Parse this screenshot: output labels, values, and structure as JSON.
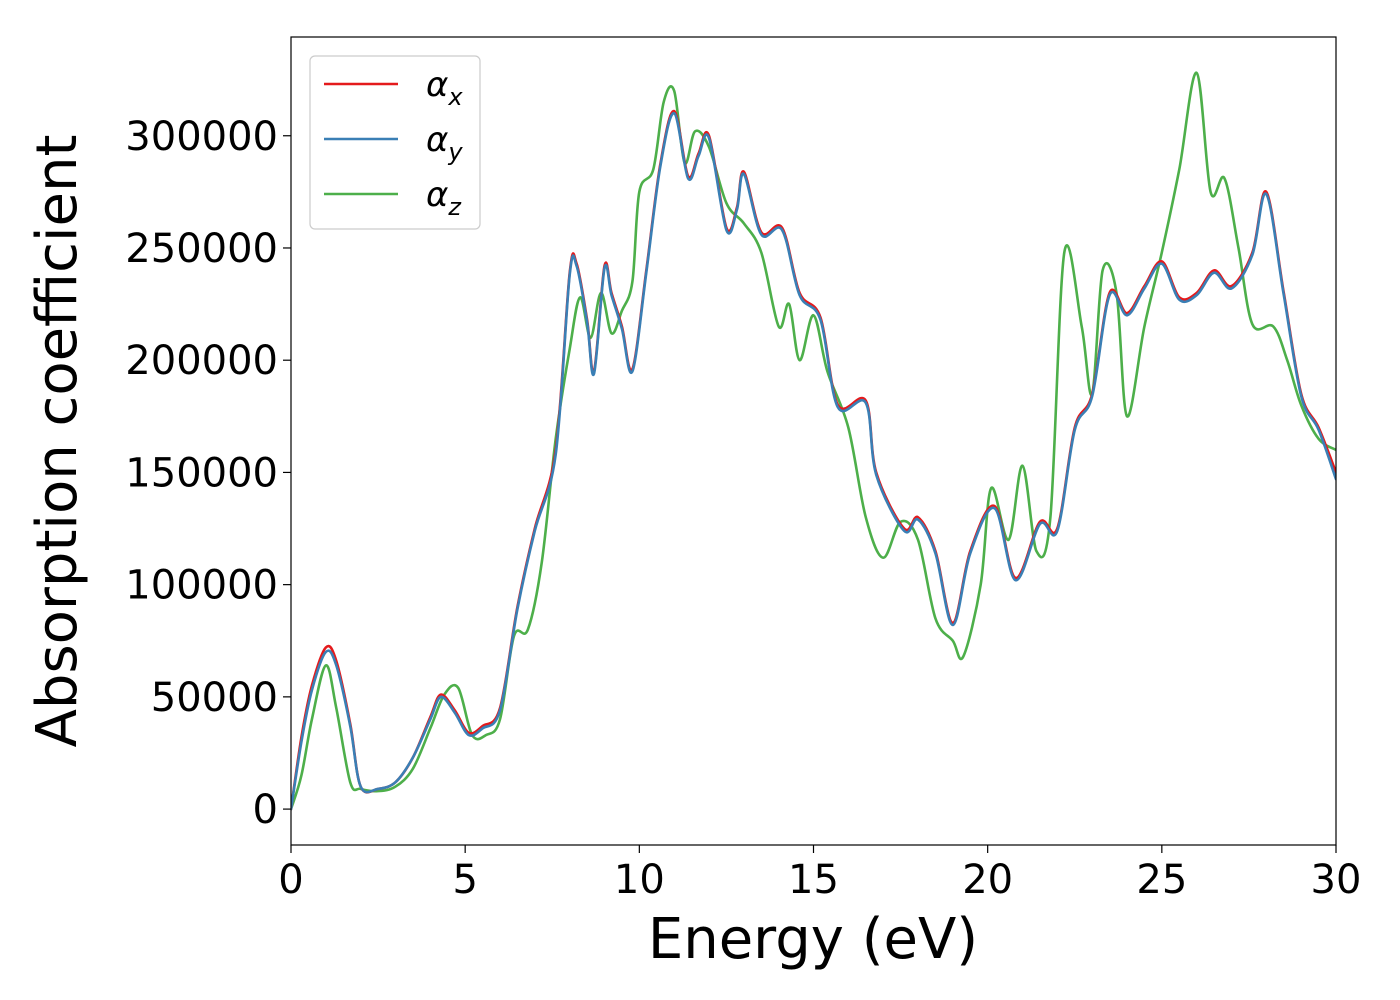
{
  "chart_data": {
    "type": "line",
    "title": "",
    "xlabel": "Energy (eV)",
    "ylabel": "Absorption coefficient",
    "xlim": [
      0,
      30
    ],
    "ylim": [
      -16000,
      344000
    ],
    "x_ticks": [
      0,
      5,
      10,
      15,
      20,
      25,
      30
    ],
    "y_ticks": [
      0,
      50000,
      100000,
      150000,
      200000,
      250000,
      300000
    ],
    "grid": false,
    "legend_position": "upper-left",
    "series": [
      {
        "name": "αx",
        "label_main": "α",
        "label_sub": "x",
        "color": "#e41a1c",
        "points": [
          [
            0,
            0
          ],
          [
            0.3,
            32000
          ],
          [
            0.6,
            55000
          ],
          [
            1.0,
            72000
          ],
          [
            1.3,
            66000
          ],
          [
            1.7,
            38000
          ],
          [
            2.0,
            10000
          ],
          [
            2.5,
            9000
          ],
          [
            3.0,
            12000
          ],
          [
            3.5,
            23000
          ],
          [
            4.0,
            41000
          ],
          [
            4.3,
            51000
          ],
          [
            4.7,
            44000
          ],
          [
            5.1,
            34000
          ],
          [
            5.5,
            37000
          ],
          [
            6.0,
            45000
          ],
          [
            6.5,
            90000
          ],
          [
            7.0,
            125000
          ],
          [
            7.6,
            160000
          ],
          [
            8.0,
            239000
          ],
          [
            8.2,
            243000
          ],
          [
            8.5,
            218000
          ],
          [
            8.7,
            195000
          ],
          [
            9.0,
            242000
          ],
          [
            9.2,
            230000
          ],
          [
            9.5,
            215000
          ],
          [
            9.8,
            196000
          ],
          [
            10.2,
            240000
          ],
          [
            10.6,
            287000
          ],
          [
            11.0,
            311000
          ],
          [
            11.4,
            282000
          ],
          [
            11.7,
            292000
          ],
          [
            12.0,
            300000
          ],
          [
            12.5,
            259000
          ],
          [
            12.8,
            268000
          ],
          [
            13.0,
            284000
          ],
          [
            13.5,
            257000
          ],
          [
            14.1,
            259000
          ],
          [
            14.6,
            230000
          ],
          [
            15.2,
            219000
          ],
          [
            15.7,
            180000
          ],
          [
            16.5,
            182000
          ],
          [
            16.8,
            150000
          ],
          [
            17.6,
            125000
          ],
          [
            18.0,
            130000
          ],
          [
            18.5,
            115000
          ],
          [
            19.0,
            83000
          ],
          [
            19.5,
            115000
          ],
          [
            20.2,
            135000
          ],
          [
            20.8,
            103000
          ],
          [
            21.5,
            128000
          ],
          [
            22.0,
            125000
          ],
          [
            22.5,
            170000
          ],
          [
            23.0,
            185000
          ],
          [
            23.5,
            230000
          ],
          [
            24.0,
            221000
          ],
          [
            24.5,
            233000
          ],
          [
            25.0,
            244000
          ],
          [
            25.5,
            228000
          ],
          [
            26.0,
            230000
          ],
          [
            26.5,
            240000
          ],
          [
            27.0,
            233000
          ],
          [
            27.6,
            248000
          ],
          [
            28.0,
            275000
          ],
          [
            28.5,
            230000
          ],
          [
            29.0,
            185000
          ],
          [
            29.5,
            170000
          ],
          [
            30.0,
            150000
          ]
        ]
      },
      {
        "name": "αy",
        "label_main": "α",
        "label_sub": "y",
        "color": "#3a7fb5",
        "points": [
          [
            0,
            0
          ],
          [
            0.3,
            30000
          ],
          [
            0.6,
            53000
          ],
          [
            1.0,
            70000
          ],
          [
            1.3,
            64000
          ],
          [
            1.7,
            37000
          ],
          [
            2.0,
            10000
          ],
          [
            2.5,
            9000
          ],
          [
            3.0,
            12000
          ],
          [
            3.5,
            23000
          ],
          [
            4.0,
            40000
          ],
          [
            4.3,
            50000
          ],
          [
            4.7,
            43000
          ],
          [
            5.1,
            33000
          ],
          [
            5.5,
            36000
          ],
          [
            6.0,
            44000
          ],
          [
            6.5,
            89000
          ],
          [
            7.0,
            124000
          ],
          [
            7.6,
            158000
          ],
          [
            8.0,
            238000
          ],
          [
            8.2,
            242000
          ],
          [
            8.5,
            217000
          ],
          [
            8.7,
            194000
          ],
          [
            9.0,
            241000
          ],
          [
            9.2,
            229000
          ],
          [
            9.5,
            214000
          ],
          [
            9.8,
            195000
          ],
          [
            10.2,
            239000
          ],
          [
            10.6,
            286000
          ],
          [
            11.0,
            310000
          ],
          [
            11.4,
            281000
          ],
          [
            11.7,
            291000
          ],
          [
            12.0,
            299000
          ],
          [
            12.5,
            258000
          ],
          [
            12.8,
            267000
          ],
          [
            13.0,
            283000
          ],
          [
            13.5,
            256000
          ],
          [
            14.1,
            258000
          ],
          [
            14.6,
            229000
          ],
          [
            15.2,
            218000
          ],
          [
            15.7,
            179000
          ],
          [
            16.5,
            181000
          ],
          [
            16.8,
            149000
          ],
          [
            17.6,
            124000
          ],
          [
            18.0,
            129000
          ],
          [
            18.5,
            114000
          ],
          [
            19.0,
            82000
          ],
          [
            19.5,
            114000
          ],
          [
            20.2,
            134000
          ],
          [
            20.8,
            102000
          ],
          [
            21.5,
            127000
          ],
          [
            22.0,
            124000
          ],
          [
            22.5,
            169000
          ],
          [
            23.0,
            184000
          ],
          [
            23.5,
            229000
          ],
          [
            24.0,
            220000
          ],
          [
            24.5,
            232000
          ],
          [
            25.0,
            243000
          ],
          [
            25.5,
            227000
          ],
          [
            26.0,
            229000
          ],
          [
            26.5,
            239000
          ],
          [
            27.0,
            232000
          ],
          [
            27.6,
            247000
          ],
          [
            28.0,
            274000
          ],
          [
            28.5,
            229000
          ],
          [
            29.0,
            184000
          ],
          [
            29.5,
            169000
          ],
          [
            30.0,
            147000
          ]
        ]
      },
      {
        "name": "αz",
        "label_main": "α",
        "label_sub": "z",
        "color": "#4daf4a",
        "points": [
          [
            0,
            0
          ],
          [
            0.3,
            15000
          ],
          [
            0.6,
            40000
          ],
          [
            1.0,
            64000
          ],
          [
            1.3,
            45000
          ],
          [
            1.7,
            12000
          ],
          [
            2.0,
            9000
          ],
          [
            2.5,
            8000
          ],
          [
            3.0,
            10000
          ],
          [
            3.5,
            18000
          ],
          [
            4.0,
            36000
          ],
          [
            4.4,
            51000
          ],
          [
            4.8,
            54000
          ],
          [
            5.2,
            33000
          ],
          [
            5.6,
            33000
          ],
          [
            6.0,
            40000
          ],
          [
            6.4,
            77000
          ],
          [
            6.8,
            80000
          ],
          [
            7.2,
            110000
          ],
          [
            7.6,
            165000
          ],
          [
            8.0,
            205000
          ],
          [
            8.3,
            228000
          ],
          [
            8.6,
            210000
          ],
          [
            8.9,
            230000
          ],
          [
            9.2,
            212000
          ],
          [
            9.5,
            222000
          ],
          [
            9.8,
            235000
          ],
          [
            10.0,
            275000
          ],
          [
            10.4,
            285000
          ],
          [
            10.7,
            315000
          ],
          [
            11.0,
            320000
          ],
          [
            11.3,
            288000
          ],
          [
            11.6,
            302000
          ],
          [
            12.0,
            295000
          ],
          [
            12.5,
            270000
          ],
          [
            13.0,
            261000
          ],
          [
            13.5,
            248000
          ],
          [
            14.0,
            215000
          ],
          [
            14.3,
            225000
          ],
          [
            14.6,
            200000
          ],
          [
            15.0,
            220000
          ],
          [
            15.4,
            195000
          ],
          [
            16.0,
            170000
          ],
          [
            16.5,
            130000
          ],
          [
            17.0,
            112000
          ],
          [
            17.5,
            128000
          ],
          [
            18.0,
            120000
          ],
          [
            18.5,
            85000
          ],
          [
            19.0,
            75000
          ],
          [
            19.3,
            68000
          ],
          [
            19.8,
            100000
          ],
          [
            20.1,
            143000
          ],
          [
            20.6,
            120000
          ],
          [
            21.0,
            153000
          ],
          [
            21.4,
            115000
          ],
          [
            21.8,
            130000
          ],
          [
            22.2,
            248000
          ],
          [
            22.7,
            215000
          ],
          [
            23.0,
            185000
          ],
          [
            23.3,
            240000
          ],
          [
            23.7,
            230000
          ],
          [
            24.0,
            175000
          ],
          [
            24.5,
            215000
          ],
          [
            25.0,
            248000
          ],
          [
            25.5,
            285000
          ],
          [
            26.0,
            328000
          ],
          [
            26.4,
            275000
          ],
          [
            26.8,
            281000
          ],
          [
            27.2,
            250000
          ],
          [
            27.6,
            216000
          ],
          [
            28.2,
            215000
          ],
          [
            28.6,
            200000
          ],
          [
            29.0,
            180000
          ],
          [
            29.5,
            165000
          ],
          [
            30.0,
            160000
          ]
        ]
      }
    ]
  }
}
